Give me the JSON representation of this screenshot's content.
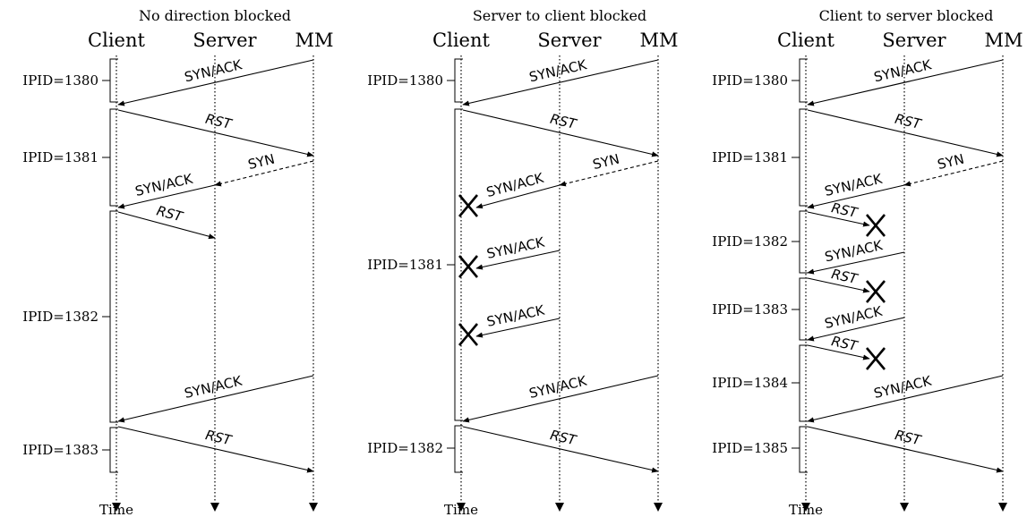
{
  "colors": {
    "ink": "#000000",
    "background": "#ffffff"
  },
  "time_label": "Time",
  "panels": [
    {
      "title": "No direction blocked",
      "participants": [
        "Client",
        "Server",
        "MM"
      ],
      "ipid_labels": [
        "IPID=1380",
        "IPID=1381",
        "IPID=1382",
        "IPID=1383"
      ],
      "messages": [
        {
          "from": "MM",
          "to": "Client",
          "label": "SYN/ACK",
          "style": "solid",
          "italic": false
        },
        {
          "from": "Client",
          "to": "MM",
          "label": "RST",
          "style": "solid",
          "italic": true
        },
        {
          "from": "MM",
          "to": "Server",
          "label": "SYN",
          "style": "dashed",
          "italic": false
        },
        {
          "from": "Server",
          "to": "Client",
          "label": "SYN/ACK",
          "style": "solid",
          "italic": false
        },
        {
          "from": "Client",
          "to": "Server",
          "label": "RST",
          "style": "solid",
          "italic": true
        },
        {
          "from": "MM",
          "to": "Client",
          "label": "SYN/ACK",
          "style": "solid",
          "italic": false
        },
        {
          "from": "Client",
          "to": "MM",
          "label": "RST",
          "style": "solid",
          "italic": true
        }
      ]
    },
    {
      "title": "Server to client blocked",
      "participants": [
        "Client",
        "Server",
        "MM"
      ],
      "ipid_labels": [
        "IPID=1380",
        "IPID=1381",
        "IPID=1382"
      ],
      "messages": [
        {
          "from": "MM",
          "to": "Client",
          "label": "SYN/ACK",
          "style": "solid",
          "italic": false
        },
        {
          "from": "Client",
          "to": "MM",
          "label": "RST",
          "style": "solid",
          "italic": true
        },
        {
          "from": "MM",
          "to": "Server",
          "label": "SYN",
          "style": "dashed",
          "italic": false
        },
        {
          "from": "Server",
          "to": "Client",
          "label": "SYN/ACK",
          "style": "solid",
          "italic": false,
          "blocked": true
        },
        {
          "from": "Server",
          "to": "Client",
          "label": "SYN/ACK",
          "style": "solid",
          "italic": false,
          "blocked": true
        },
        {
          "from": "Server",
          "to": "Client",
          "label": "SYN/ACK",
          "style": "solid",
          "italic": false,
          "blocked": true
        },
        {
          "from": "MM",
          "to": "Client",
          "label": "SYN/ACK",
          "style": "solid",
          "italic": false
        },
        {
          "from": "Client",
          "to": "MM",
          "label": "RST",
          "style": "solid",
          "italic": true
        }
      ]
    },
    {
      "title": "Client to server blocked",
      "participants": [
        "Client",
        "Server",
        "MM"
      ],
      "ipid_labels": [
        "IPID=1380",
        "IPID=1381",
        "IPID=1382",
        "IPID=1383",
        "IPID=1384",
        "IPID=1385"
      ],
      "messages": [
        {
          "from": "MM",
          "to": "Client",
          "label": "SYN/ACK",
          "style": "solid",
          "italic": false
        },
        {
          "from": "Client",
          "to": "MM",
          "label": "RST",
          "style": "solid",
          "italic": true
        },
        {
          "from": "MM",
          "to": "Server",
          "label": "SYN",
          "style": "dashed",
          "italic": false
        },
        {
          "from": "Server",
          "to": "Client",
          "label": "SYN/ACK",
          "style": "solid",
          "italic": false
        },
        {
          "from": "Client",
          "to": "Server",
          "label": "RST",
          "style": "solid",
          "italic": true,
          "blocked": true
        },
        {
          "from": "Server",
          "to": "Client",
          "label": "SYN/ACK",
          "style": "solid",
          "italic": false
        },
        {
          "from": "Client",
          "to": "Server",
          "label": "RST",
          "style": "solid",
          "italic": true,
          "blocked": true
        },
        {
          "from": "Server",
          "to": "Client",
          "label": "SYN/ACK",
          "style": "solid",
          "italic": false
        },
        {
          "from": "Client",
          "to": "Server",
          "label": "RST",
          "style": "solid",
          "italic": true,
          "blocked": true
        },
        {
          "from": "MM",
          "to": "Client",
          "label": "SYN/ACK",
          "style": "solid",
          "italic": false
        },
        {
          "from": "Client",
          "to": "MM",
          "label": "RST",
          "style": "solid",
          "italic": true
        }
      ]
    }
  ]
}
